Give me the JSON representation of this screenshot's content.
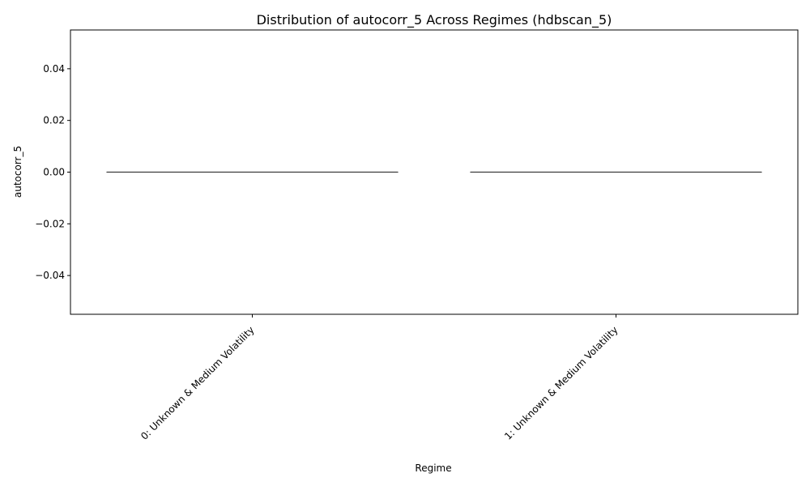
{
  "chart_data": {
    "type": "box",
    "title": "Distribution of autocorr_5 Across Regimes (hdbscan_5)",
    "xlabel": "Regime",
    "ylabel": "autocorr_5",
    "categories": [
      "0: Unknown & Medium Volatility",
      "1: Unknown & Medium Volatility"
    ],
    "series": [
      {
        "values": [
          {
            "min": 0,
            "q1": 0,
            "median": 0,
            "q3": 0,
            "max": 0
          },
          {
            "min": 0,
            "q1": 0,
            "median": 0,
            "q3": 0,
            "max": 0
          }
        ]
      }
    ],
    "ylim": [
      -0.055,
      0.055
    ],
    "yticks": [
      0.04,
      0.02,
      0.0,
      -0.02,
      -0.04
    ],
    "ytick_labels": [
      "0.04",
      "0.02",
      "0.00",
      "−0.02",
      "−0.04"
    ],
    "grid": false,
    "legend": "none",
    "colors": {
      "median_line": "#3d3d3d",
      "axis": "#000000"
    }
  }
}
